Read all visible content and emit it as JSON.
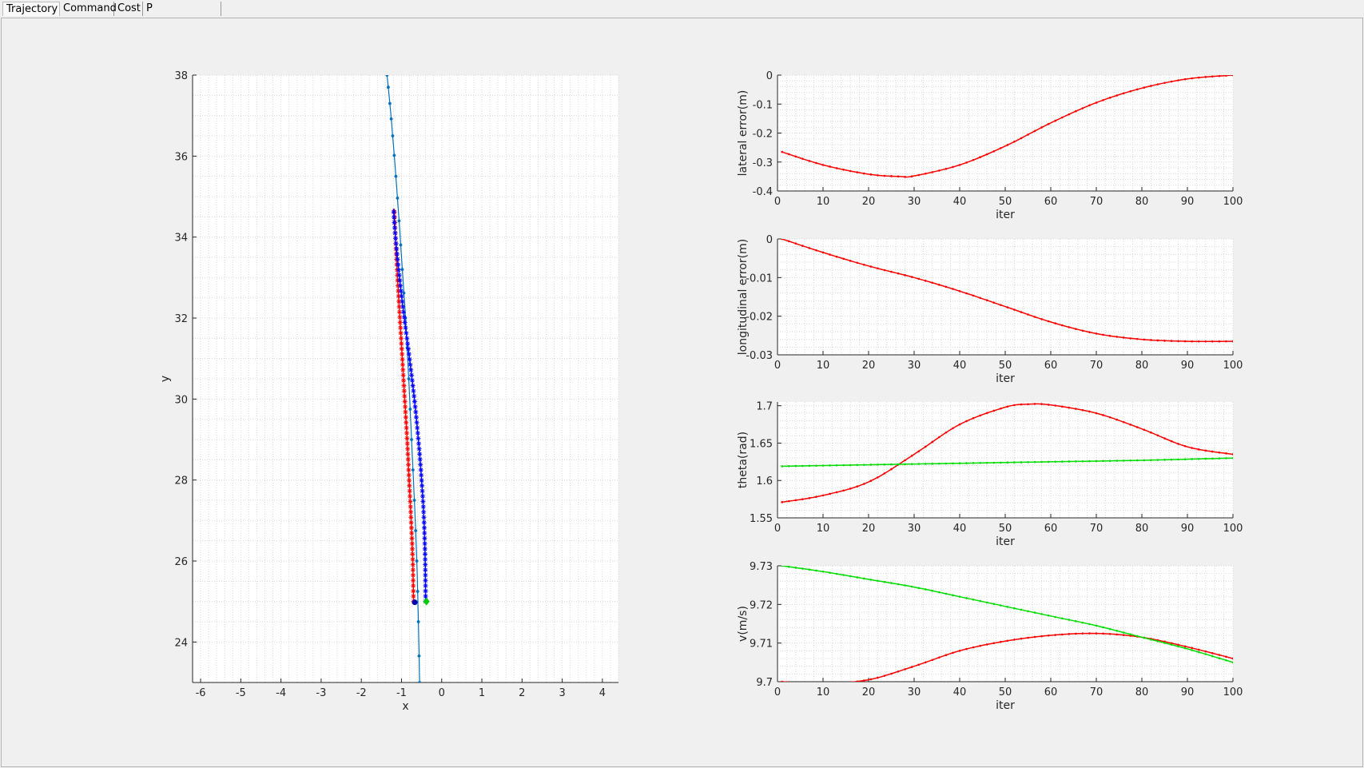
{
  "tabs": [
    {
      "label": "Trajectory",
      "active": true
    },
    {
      "label": "Command",
      "active": false
    },
    {
      "label": "Cost",
      "active": false
    },
    {
      "label": "P Convergence",
      "active": false
    }
  ],
  "colors": {
    "reference_path": "#0072bd",
    "predicted": "#ff0000",
    "actual": "#0000ff",
    "reference_state": "#00dd00",
    "marker_start": "#00cc00",
    "marker_vehicle": "#0000aa"
  },
  "chart_data": [
    {
      "type": "line",
      "name": "trajectory",
      "xlabel": "x",
      "ylabel": "y",
      "xlim": [
        -6.2,
        4.4
      ],
      "ylim": [
        23,
        38
      ],
      "xticks": [
        -6,
        -5,
        -4,
        -3,
        -2,
        -1,
        0,
        1,
        2,
        3,
        4
      ],
      "yticks": [
        24,
        26,
        28,
        30,
        32,
        34,
        36,
        38
      ],
      "grid": true,
      "series": [
        {
          "color_key": "reference_path",
          "marker": "dot",
          "x": [
            -0.55,
            -0.58,
            -0.62,
            -0.68,
            -0.75,
            -0.82,
            -0.9,
            -0.98,
            -1.06,
            -1.14,
            -1.22,
            -1.29,
            -1.36
          ],
          "y": [
            23.0,
            24.5,
            26.0,
            27.5,
            29.0,
            30.5,
            32.0,
            33.2,
            34.4,
            35.5,
            36.5,
            37.3,
            38.0
          ]
        },
        {
          "color_key": "predicted",
          "marker": "star",
          "x": [
            -0.7,
            -0.72,
            -0.76,
            -0.81,
            -0.86,
            -0.92,
            -0.98,
            -1.04,
            -1.1,
            -1.15,
            -1.18
          ],
          "y": [
            25.0,
            26.0,
            27.0,
            28.0,
            29.0,
            30.0,
            31.0,
            32.0,
            33.0,
            34.0,
            34.7
          ]
        },
        {
          "color_key": "actual",
          "marker": "star",
          "x": [
            -0.4,
            -0.41,
            -0.44,
            -0.5,
            -0.58,
            -0.68,
            -0.8,
            -0.93,
            -1.05,
            -1.15,
            -1.2
          ],
          "y": [
            25.0,
            26.0,
            27.0,
            28.0,
            29.0,
            30.0,
            31.0,
            32.0,
            33.0,
            34.0,
            34.7
          ]
        }
      ],
      "points": [
        {
          "color_key": "marker_vehicle",
          "shape": "circle",
          "x": -0.67,
          "y": 24.98
        },
        {
          "color_key": "marker_start",
          "shape": "diamond",
          "x": -0.38,
          "y": 25.0
        }
      ]
    },
    {
      "type": "line",
      "name": "lateral",
      "xlabel": "iter",
      "ylabel": "lateral error(m)",
      "xlim": [
        0,
        100
      ],
      "ylim": [
        -0.4,
        0
      ],
      "xticks": [
        0,
        10,
        20,
        30,
        40,
        50,
        60,
        70,
        80,
        90,
        100
      ],
      "yticks": [
        -0.4,
        -0.3,
        -0.2,
        -0.1,
        0
      ],
      "yticklabels": [
        "-0.4",
        "-0.3",
        "-0.2",
        "-0.1",
        "0"
      ],
      "grid": true,
      "series": [
        {
          "color_key": "predicted",
          "x": [
            1,
            10,
            20,
            27,
            30,
            40,
            50,
            60,
            70,
            80,
            90,
            100
          ],
          "y": [
            -0.265,
            -0.31,
            -0.342,
            -0.35,
            -0.348,
            -0.31,
            -0.245,
            -0.165,
            -0.095,
            -0.045,
            -0.013,
            0.0
          ]
        }
      ]
    },
    {
      "type": "line",
      "name": "longitudinal",
      "xlabel": "iter",
      "ylabel": "longitudinal error(m)",
      "xlim": [
        0,
        100
      ],
      "ylim": [
        -0.03,
        0
      ],
      "xticks": [
        0,
        10,
        20,
        30,
        40,
        50,
        60,
        70,
        80,
        90,
        100
      ],
      "yticks": [
        -0.03,
        -0.02,
        -0.01,
        0
      ],
      "yticklabels": [
        "-0.03",
        "-0.02",
        "-0.01",
        "0"
      ],
      "grid": true,
      "series": [
        {
          "color_key": "predicted",
          "x": [
            1,
            10,
            20,
            30,
            40,
            50,
            60,
            70,
            80,
            90,
            100
          ],
          "y": [
            0.0,
            -0.0035,
            -0.007,
            -0.01,
            -0.0135,
            -0.0175,
            -0.0215,
            -0.0245,
            -0.026,
            -0.0265,
            -0.0265
          ]
        }
      ]
    },
    {
      "type": "line",
      "name": "theta",
      "xlabel": "iter",
      "ylabel": "theta(rad)",
      "xlim": [
        0,
        100
      ],
      "ylim": [
        1.55,
        1.705
      ],
      "xticks": [
        0,
        10,
        20,
        30,
        40,
        50,
        60,
        70,
        80,
        90,
        100
      ],
      "yticks": [
        1.55,
        1.6,
        1.65,
        1.7
      ],
      "yticklabels": [
        "1.55",
        "1.6",
        "1.65",
        "1.7"
      ],
      "grid": true,
      "series": [
        {
          "color_key": "predicted",
          "x": [
            1,
            10,
            20,
            30,
            40,
            50,
            55,
            60,
            70,
            80,
            90,
            100
          ],
          "y": [
            1.571,
            1.58,
            1.598,
            1.635,
            1.675,
            1.698,
            1.702,
            1.701,
            1.69,
            1.669,
            1.645,
            1.635
          ]
        },
        {
          "color_key": "reference_state",
          "x": [
            1,
            20,
            40,
            60,
            80,
            100
          ],
          "y": [
            1.619,
            1.621,
            1.623,
            1.625,
            1.627,
            1.63
          ]
        }
      ]
    },
    {
      "type": "line",
      "name": "velocity",
      "xlabel": "iter",
      "ylabel": "v(m/s)",
      "xlim": [
        0,
        100
      ],
      "ylim": [
        9.7,
        9.73
      ],
      "xticks": [
        0,
        10,
        20,
        30,
        40,
        50,
        60,
        70,
        80,
        90,
        100
      ],
      "yticks": [
        9.7,
        9.71,
        9.72,
        9.73
      ],
      "yticklabels": [
        "9.7",
        "9.71",
        "9.72",
        "9.73"
      ],
      "grid": true,
      "series": [
        {
          "color_key": "predicted",
          "x": [
            1,
            10,
            20,
            30,
            40,
            50,
            60,
            70,
            80,
            90,
            100
          ],
          "y": [
            9.7,
            9.6995,
            9.7005,
            9.704,
            9.708,
            9.7105,
            9.712,
            9.7125,
            9.7115,
            9.709,
            9.706
          ]
        },
        {
          "color_key": "reference_state",
          "x": [
            1,
            10,
            20,
            30,
            40,
            50,
            60,
            70,
            80,
            90,
            100
          ],
          "y": [
            9.73,
            9.7285,
            9.7265,
            9.7245,
            9.722,
            9.7195,
            9.717,
            9.7145,
            9.7115,
            9.7085,
            9.705
          ]
        }
      ]
    }
  ]
}
